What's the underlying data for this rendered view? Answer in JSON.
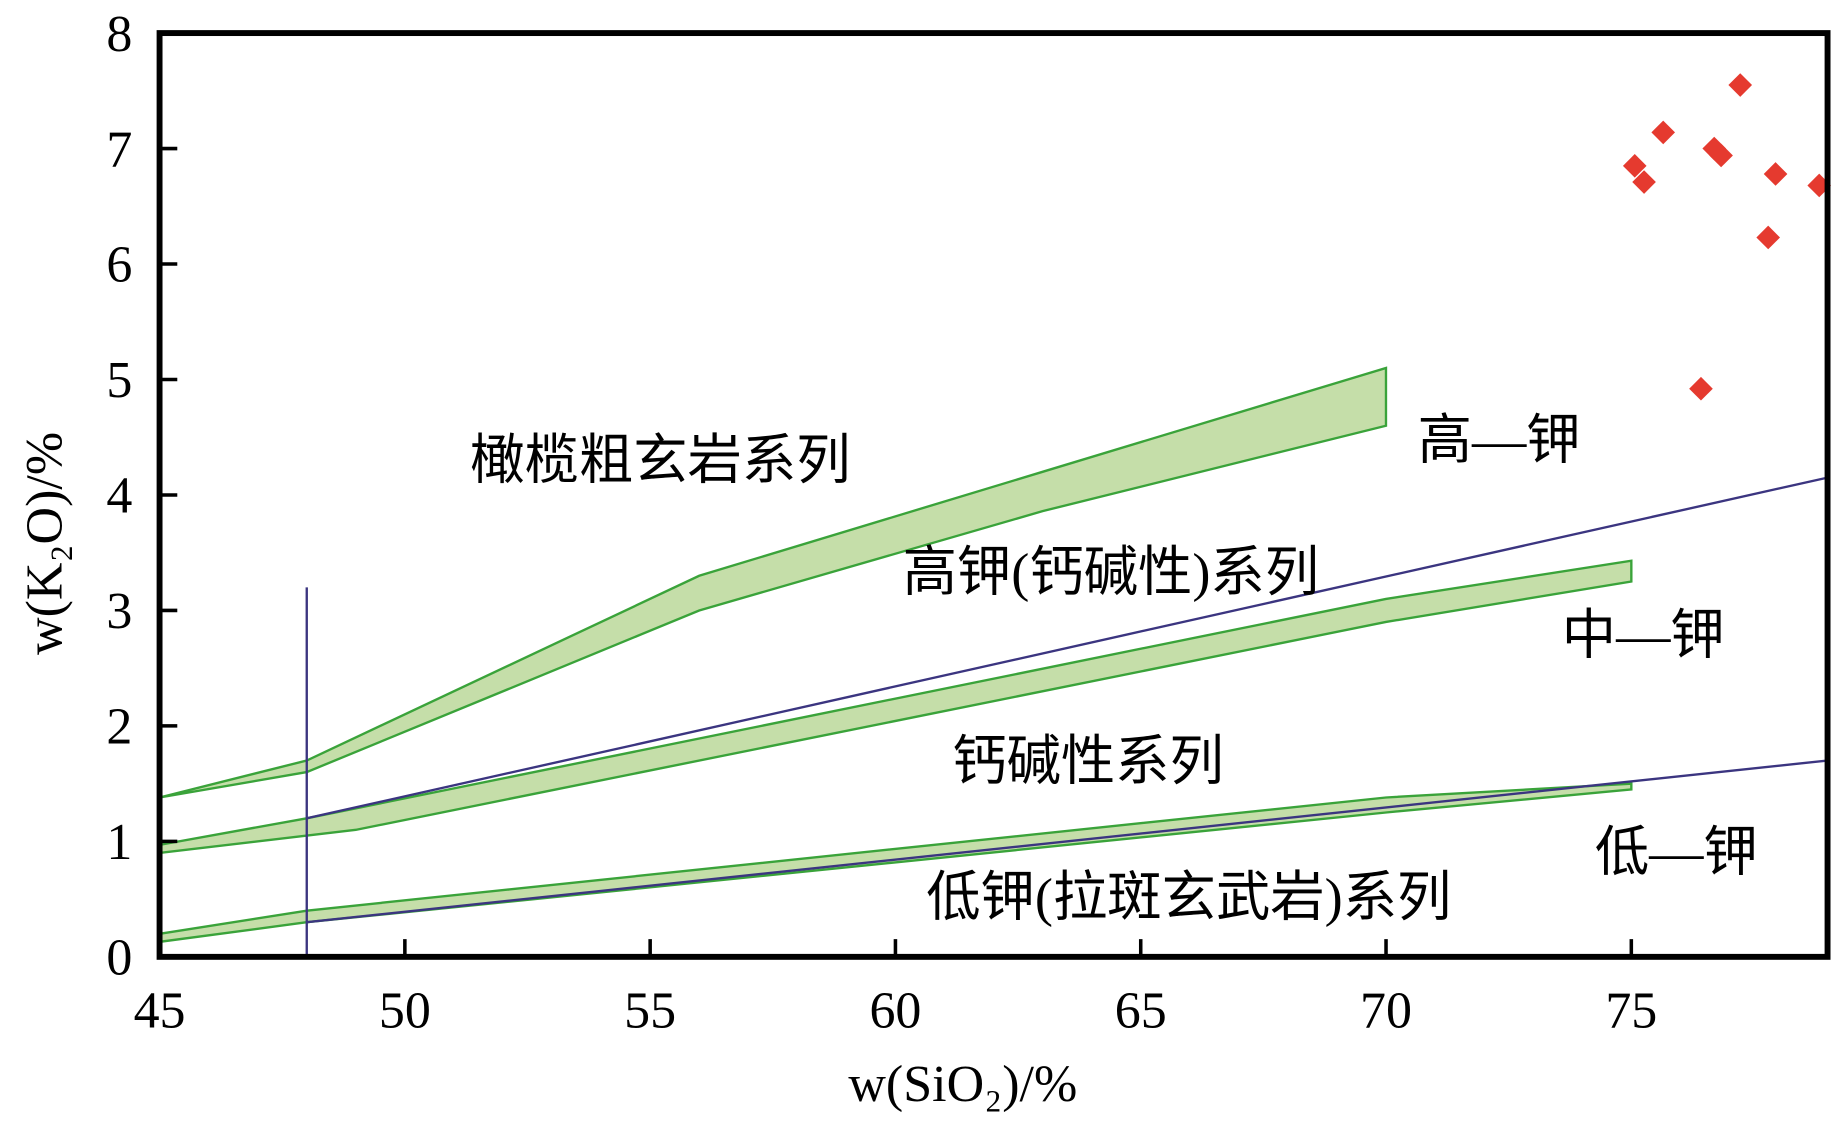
{
  "chart_data": {
    "type": "scatter",
    "title": "",
    "xlabel": "w(SiO₂)/%",
    "ylabel": "w(K₂O)/%",
    "xlim": [
      45,
      79
    ],
    "ylim": [
      0,
      8
    ],
    "xticks": [
      "45",
      "50",
      "55",
      "60",
      "65",
      "70",
      "75"
    ],
    "yticks": [
      "0",
      "1",
      "2",
      "3",
      "4",
      "5",
      "6",
      "7",
      "8"
    ],
    "grid": false,
    "colors": {
      "points": "#e53a2f",
      "band_fill": "#c5dea9",
      "band_stroke": "#3aa33a",
      "divider": "#3b3580"
    },
    "points": [
      {
        "x": 75.07,
        "y": 6.85
      },
      {
        "x": 75.26,
        "y": 6.71
      },
      {
        "x": 75.65,
        "y": 7.14
      },
      {
        "x": 77.22,
        "y": 7.55
      },
      {
        "x": 76.69,
        "y": 7.0
      },
      {
        "x": 76.83,
        "y": 6.94
      },
      {
        "x": 77.94,
        "y": 6.78
      },
      {
        "x": 78.83,
        "y": 6.68
      },
      {
        "x": 77.79,
        "y": 6.23
      },
      {
        "x": 76.42,
        "y": 4.92
      }
    ],
    "bands": [
      {
        "name": "high-k-shoshonite-boundary",
        "upper": [
          [
            45,
            1.38
          ],
          [
            48,
            1.7
          ],
          [
            56,
            3.3
          ],
          [
            63,
            4.2
          ],
          [
            70,
            5.1
          ]
        ],
        "lower": [
          [
            45,
            1.38
          ],
          [
            48,
            1.6
          ],
          [
            56,
            3.0
          ],
          [
            63,
            3.86
          ],
          [
            70,
            4.6
          ]
        ]
      },
      {
        "name": "medium-high-k-boundary",
        "upper": [
          [
            45,
            0.97
          ],
          [
            48,
            1.2
          ],
          [
            70,
            3.1
          ],
          [
            75,
            3.43
          ]
        ],
        "lower": [
          [
            45,
            0.9
          ],
          [
            49,
            1.1
          ],
          [
            70,
            2.9
          ],
          [
            75,
            3.25
          ]
        ]
      },
      {
        "name": "low-medium-k-boundary",
        "upper": [
          [
            45,
            0.2
          ],
          [
            48,
            0.4
          ],
          [
            70,
            1.38
          ],
          [
            75,
            1.5
          ]
        ],
        "lower": [
          [
            45,
            0.13
          ],
          [
            48,
            0.3
          ],
          [
            70,
            1.25
          ],
          [
            75,
            1.45
          ]
        ]
      }
    ],
    "lines": [
      {
        "name": "upper-divider",
        "points": [
          [
            48,
            1.2
          ],
          [
            79,
            4.15
          ]
        ]
      },
      {
        "name": "lower-divider",
        "points": [
          [
            48,
            0.3
          ],
          [
            79,
            1.7
          ]
        ]
      },
      {
        "name": "basalt-limit",
        "points": [
          [
            48,
            0
          ],
          [
            48,
            3.2
          ]
        ]
      }
    ],
    "annotations": [
      "橄榄粗玄岩系列",
      "高钾(钙碱性)系列",
      "钙碱性系列",
      "低钾(拉斑玄武岩)系列",
      "高—钾",
      "中—钾",
      "低—钾"
    ]
  }
}
